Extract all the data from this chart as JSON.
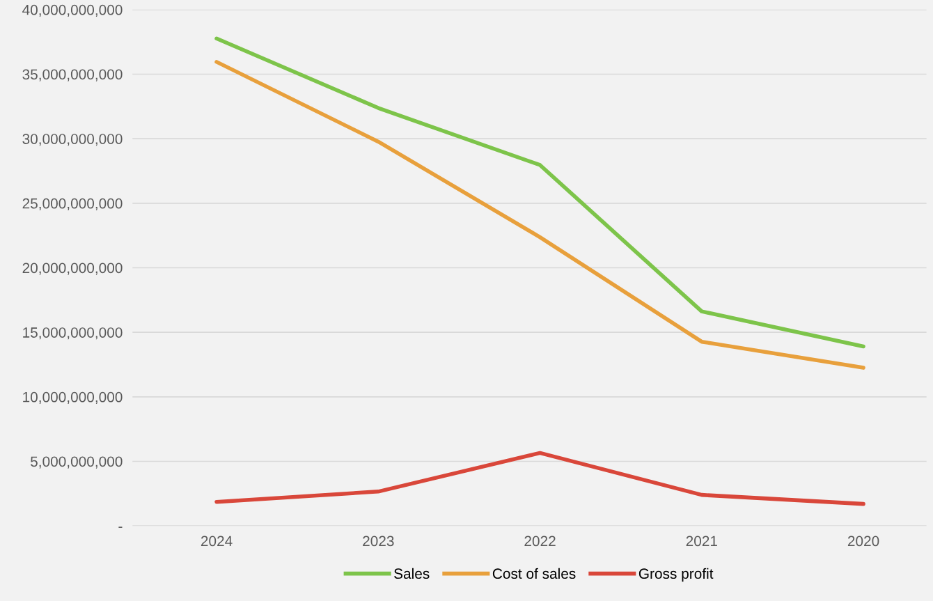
{
  "chart_data": {
    "type": "line",
    "categories": [
      "2024",
      "2023",
      "2022",
      "2021",
      "2020"
    ],
    "series": [
      {
        "name": "Sales",
        "color": "#7dc44a",
        "values": [
          37760000000,
          32380000000,
          27960000000,
          16620000000,
          13900000000
        ]
      },
      {
        "name": "Cost of sales",
        "color": "#e8a03c",
        "values": [
          35950000000,
          29770000000,
          22370000000,
          14270000000,
          12250000000
        ]
      },
      {
        "name": "Gross profit",
        "color": "#d9473a",
        "values": [
          1860000000,
          2660000000,
          5650000000,
          2400000000,
          1700000000
        ]
      }
    ],
    "ylim": [
      0,
      40000000000
    ],
    "yticks": [
      {
        "value": 0,
        "label": "-"
      },
      {
        "value": 5000000000,
        "label": "5,000,000,000"
      },
      {
        "value": 10000000000,
        "label": "10,000,000,000"
      },
      {
        "value": 15000000000,
        "label": "15,000,000,000"
      },
      {
        "value": 20000000000,
        "label": "20,000,000,000"
      },
      {
        "value": 25000000000,
        "label": "25,000,000,000"
      },
      {
        "value": 30000000000,
        "label": "30,000,000,000"
      },
      {
        "value": 35000000000,
        "label": "35,000,000,000"
      },
      {
        "value": 40000000000,
        "label": "40,000,000,000"
      }
    ],
    "grid": "y",
    "legend": "bottom",
    "marker": "none",
    "line_style": "solid"
  }
}
